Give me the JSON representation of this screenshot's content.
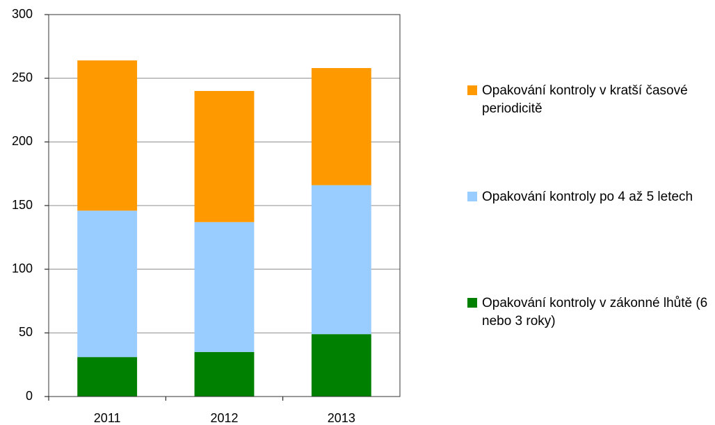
{
  "chart_data": {
    "type": "stacked_bar",
    "categories": [
      "2011",
      "2012",
      "2013"
    ],
    "series": [
      {
        "name": "Opakování kontroly v zákonné lhůtě (6 nebo 3 roky)",
        "color": "#008000",
        "values": [
          31,
          35,
          49
        ]
      },
      {
        "name": "Opakování kontroly po 4 až 5 letech",
        "color": "#99ccff",
        "values": [
          115,
          102,
          117
        ]
      },
      {
        "name": "Opakování kontroly v kratší časové periodicitě",
        "color": "#ff9900",
        "values": [
          118,
          103,
          92
        ]
      }
    ],
    "ylim": [
      0,
      300
    ],
    "yticks": [
      0,
      50,
      100,
      150,
      200,
      250,
      300
    ],
    "grid": true,
    "legend": "right"
  }
}
